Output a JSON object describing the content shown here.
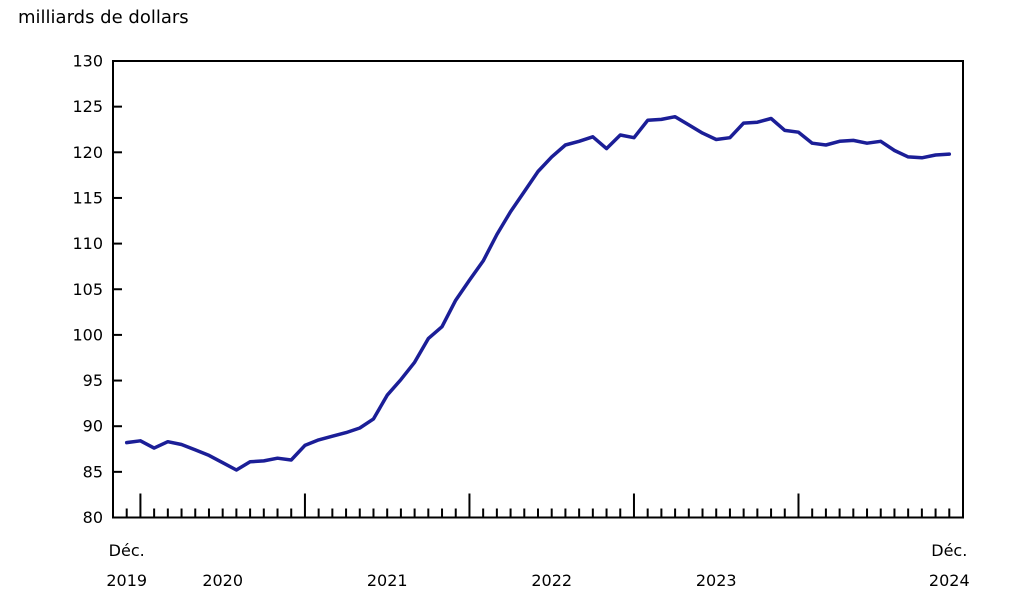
{
  "chart_data": {
    "type": "line",
    "title": "milliards de dollars",
    "ylabel": "milliards de dollars",
    "xlabel": "",
    "ylim": [
      80,
      130
    ],
    "ytick_step": 5,
    "yticks": [
      80,
      85,
      90,
      95,
      100,
      105,
      110,
      115,
      120,
      125,
      130
    ],
    "grid": false,
    "legend": "none",
    "line_color": "#1b1e97",
    "axis_color": "#000000",
    "major_tick_every": 12,
    "major_tick_offset": 1,
    "x": [
      "2019-12",
      "2020-01",
      "2020-02",
      "2020-03",
      "2020-04",
      "2020-05",
      "2020-06",
      "2020-07",
      "2020-08",
      "2020-09",
      "2020-10",
      "2020-11",
      "2020-12",
      "2021-01",
      "2021-02",
      "2021-03",
      "2021-04",
      "2021-05",
      "2021-06",
      "2021-07",
      "2021-08",
      "2021-09",
      "2021-10",
      "2021-11",
      "2021-12",
      "2022-01",
      "2022-02",
      "2022-03",
      "2022-04",
      "2022-05",
      "2022-06",
      "2022-07",
      "2022-08",
      "2022-09",
      "2022-10",
      "2022-11",
      "2022-12",
      "2023-01",
      "2023-02",
      "2023-03",
      "2023-04",
      "2023-05",
      "2023-06",
      "2023-07",
      "2023-08",
      "2023-09",
      "2023-10",
      "2023-11",
      "2023-12",
      "2024-01",
      "2024-02",
      "2024-03",
      "2024-04",
      "2024-05",
      "2024-06",
      "2024-07",
      "2024-08",
      "2024-09",
      "2024-10",
      "2024-11",
      "2024-12"
    ],
    "values": [
      88.2,
      88.4,
      87.6,
      88.3,
      88.0,
      87.4,
      86.8,
      86.0,
      85.2,
      86.1,
      86.2,
      86.5,
      86.3,
      87.9,
      88.5,
      88.9,
      89.3,
      89.8,
      90.8,
      93.4,
      95.1,
      97.0,
      99.6,
      100.9,
      103.8,
      106.0,
      108.1,
      111.0,
      113.5,
      115.7,
      117.9,
      119.5,
      120.8,
      121.2,
      121.7,
      120.4,
      121.9,
      121.6,
      123.5,
      123.6,
      123.9,
      123.0,
      122.1,
      121.4,
      121.6,
      123.2,
      123.3,
      123.7,
      122.4,
      122.2,
      121.0,
      120.8,
      121.2,
      121.3,
      121.0,
      121.2,
      120.2,
      119.5,
      119.4,
      119.7,
      119.8
    ],
    "x_axis_labels": [
      {
        "top": "Déc.",
        "bottom": "2019",
        "month_index": 0
      },
      {
        "top": "",
        "bottom": "2020",
        "month_index": 7
      },
      {
        "top": "",
        "bottom": "2021",
        "month_index": 19
      },
      {
        "top": "",
        "bottom": "2022",
        "month_index": 31
      },
      {
        "top": "",
        "bottom": "2023",
        "month_index": 43
      },
      {
        "top": "Déc.",
        "bottom": "2024",
        "month_index": 60
      }
    ]
  }
}
